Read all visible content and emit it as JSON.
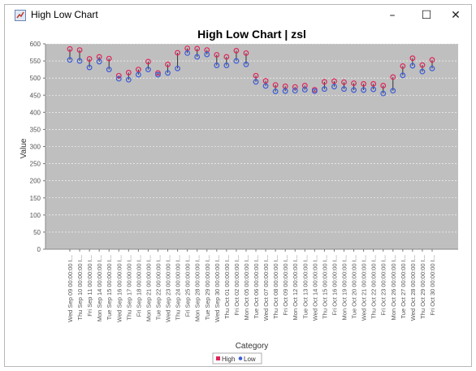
{
  "window": {
    "title": "High Low Chart",
    "minimize_glyph": "–",
    "maximize_glyph": "☐",
    "close_glyph": "✕"
  },
  "chart_data": {
    "type": "high-low",
    "title": "High Low Chart | zsl",
    "xlabel": "Category",
    "ylabel": "Value",
    "ylim": [
      0,
      600
    ],
    "yticks": [
      0,
      50,
      100,
      150,
      200,
      250,
      300,
      350,
      400,
      450,
      500,
      550,
      600
    ],
    "grid": true,
    "legend_position": "bottom",
    "legend": [
      {
        "name": "High",
        "color": "#e0245a"
      },
      {
        "name": "Low",
        "color": "#3a5bd9"
      }
    ],
    "categories": [
      "Wed Sep 09 00:00:00 I...",
      "Thu Sep 10 00:00:00 I...",
      "Fri Sep 11 00:00:00 I...",
      "Mon Sep 14 00:00:00 I...",
      "Tue Sep 15 00:00:00 I...",
      "Wed Sep 16 00:00:00 I...",
      "Thu Sep 17 00:00:00 I...",
      "Fri Sep 18 00:00:00 I...",
      "Mon Sep 21 00:00:00 I...",
      "Tue Sep 22 00:00:00 I...",
      "Wed Sep 23 00:00:00 I...",
      "Thu Sep 24 00:00:00 I...",
      "Fri Sep 25 00:00:00 I...",
      "Mon Sep 28 00:00:00 I...",
      "Tue Sep 29 00:00:00 I...",
      "Wed Sep 30 00:00:00 I...",
      "Thu Oct 01 00:00:00 I...",
      "Fri Oct 02 00:00:00 I...",
      "Mon Oct 05 00:00:00 I...",
      "Tue Oct 06 00:00:00 I...",
      "Wed Oct 07 00:00:00 I...",
      "Thu Oct 08 00:00:00 I...",
      "Fri Oct 09 00:00:00 I...",
      "Mon Oct 12 00:00:00 I...",
      "Tue Oct 13 00:00:00 I...",
      "Wed Oct 14 00:00:00 I...",
      "Thu Oct 15 00:00:00 I...",
      "Fri Oct 16 00:00:00 I...",
      "Mon Oct 19 00:00:00 I...",
      "Tue Oct 20 00:00:00 I...",
      "Wed Oct 21 00:00:00 I...",
      "Thu Oct 22 00:00:00 I...",
      "Fri Oct 23 00:00:00 I...",
      "Mon Oct 26 00:00:00 I...",
      "Tue Oct 27 00:00:00 I...",
      "Wed Oct 28 00:00:00 I...",
      "Thu Oct 29 00:00:00 I...",
      "Fri Oct 30 00:00:00 I..."
    ],
    "high": [
      585,
      582,
      556,
      562,
      557,
      507,
      516,
      525,
      548,
      515,
      540,
      574,
      587,
      586,
      582,
      568,
      562,
      580,
      573,
      507,
      492,
      480,
      476,
      474,
      478,
      466,
      489,
      491,
      488,
      485,
      483,
      483,
      478,
      503,
      535,
      558,
      538,
      553
    ],
    "low": [
      553,
      550,
      531,
      548,
      525,
      498,
      495,
      510,
      525,
      510,
      515,
      528,
      573,
      562,
      569,
      537,
      537,
      550,
      540,
      489,
      477,
      461,
      462,
      463,
      466,
      462,
      468,
      475,
      468,
      465,
      465,
      467,
      455,
      463,
      508,
      536,
      519,
      528
    ],
    "plot_background": "#bfbfbf"
  }
}
